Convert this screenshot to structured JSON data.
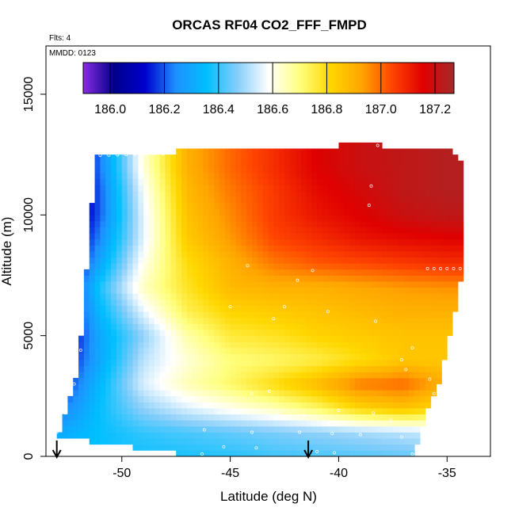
{
  "chart_data": {
    "type": "heatmap",
    "title": "ORCAS RF04 CO2_FFF_FMPD",
    "flights_label": "Flts: 4",
    "mmdd_label": "MMDD: 0123",
    "xlabel": "Latitude (deg N)",
    "ylabel": "Altitude (m)",
    "xlim": [
      -53.5,
      -33
    ],
    "ylim": [
      0,
      17000
    ],
    "x_ticks": [
      -50,
      -45,
      -40,
      -35
    ],
    "y_ticks": [
      0,
      5000,
      10000,
      15000
    ],
    "colorbar": {
      "range": [
        185.9,
        187.27
      ],
      "ticks": [
        186.0,
        186.2,
        186.4,
        186.6,
        186.8,
        187.0,
        187.2
      ],
      "tick_labels": [
        "186.0",
        "186.2",
        "186.4",
        "186.6",
        "186.8",
        "187.0",
        "187.2"
      ],
      "colors": [
        "#8a2be2",
        "#00008b",
        "#0000cd",
        "#1e90ff",
        "#00bfff",
        "#87cefa",
        "#ffffff",
        "#ffff80",
        "#ffd700",
        "#ffa500",
        "#ff4500",
        "#e00000",
        "#a52a2a"
      ]
    },
    "domain_outline": {
      "lat": [
        -53.0,
        -52.0,
        -51.2,
        -39.2,
        -34.8,
        -34.2,
        -34.2,
        -34.6,
        -35.4,
        -36.2,
        -36.5,
        -46.5,
        -48.5,
        -51.0,
        -53.0
      ],
      "alt": [
        700,
        3500,
        12500,
        12900,
        12800,
        12000,
        8000,
        6000,
        3000,
        1200,
        0,
        0,
        250,
        600,
        700
      ]
    },
    "field_anchors": {
      "columns_lat": [
        -53,
        -51,
        -49,
        -47,
        -45,
        -43,
        -41,
        -39,
        -37,
        -35
      ],
      "levels_alt": [
        0,
        1000,
        2000,
        3000,
        4000,
        5000,
        6000,
        7000,
        8000,
        9000,
        10000,
        11000,
        12000,
        13000
      ],
      "values": [
        [
          186.35,
          186.36,
          186.37,
          186.38,
          186.39,
          186.41,
          186.42,
          186.43,
          186.44,
          186.45
        ],
        [
          186.3,
          186.36,
          186.4,
          186.42,
          186.44,
          186.46,
          186.48,
          186.5,
          186.52,
          186.55
        ],
        [
          186.2,
          186.36,
          186.48,
          186.55,
          186.6,
          186.65,
          186.72,
          186.82,
          186.86,
          186.8
        ],
        [
          186.12,
          186.34,
          186.55,
          186.65,
          186.72,
          186.8,
          186.88,
          186.98,
          187.0,
          186.9
        ],
        [
          186.08,
          186.3,
          186.52,
          186.62,
          186.7,
          186.72,
          186.75,
          186.8,
          186.85,
          186.85
        ],
        [
          186.04,
          186.3,
          186.48,
          186.66,
          186.76,
          186.78,
          186.82,
          186.84,
          186.86,
          186.86
        ],
        [
          186.02,
          186.34,
          186.56,
          186.74,
          186.82,
          186.84,
          186.86,
          186.88,
          186.9,
          186.9
        ],
        [
          186.0,
          186.38,
          186.64,
          186.78,
          186.88,
          186.9,
          186.9,
          186.92,
          186.94,
          186.95
        ],
        [
          185.98,
          186.3,
          186.6,
          186.8,
          186.9,
          186.98,
          187.02,
          187.04,
          187.06,
          187.08
        ],
        [
          185.98,
          186.24,
          186.56,
          186.84,
          186.94,
          187.04,
          187.08,
          187.12,
          187.14,
          187.15
        ],
        [
          185.96,
          186.2,
          186.56,
          186.86,
          186.96,
          187.06,
          187.12,
          187.16,
          187.2,
          187.22
        ],
        [
          185.94,
          186.2,
          186.58,
          186.88,
          186.98,
          187.06,
          187.14,
          187.18,
          187.22,
          187.24
        ],
        [
          185.92,
          186.22,
          186.62,
          186.9,
          187.0,
          187.08,
          187.16,
          187.2,
          187.22,
          187.24
        ],
        [
          185.9,
          186.22,
          186.62,
          186.9,
          187.0,
          187.08,
          187.16,
          187.2,
          187.22,
          187.24
        ]
      ]
    },
    "sample_points": [
      [
        -51.8,
        12450
      ],
      [
        -51.4,
        12460
      ],
      [
        -51.0,
        12470
      ],
      [
        -50.6,
        12480
      ],
      [
        -50.2,
        12490
      ],
      [
        -49.8,
        12500
      ],
      [
        -49.4,
        12510
      ],
      [
        -48.9,
        12520
      ],
      [
        -48.5,
        12530
      ],
      [
        -48.1,
        12540
      ],
      [
        -38.2,
        12880
      ],
      [
        -37.8,
        12880
      ],
      [
        -37.4,
        12880
      ],
      [
        -37.0,
        12880
      ],
      [
        -36.6,
        12880
      ],
      [
        -36.2,
        12880
      ],
      [
        -35.8,
        12880
      ],
      [
        -35.4,
        12880
      ],
      [
        -35.0,
        12880
      ],
      [
        -34.6,
        12870
      ],
      [
        -35.9,
        7780
      ],
      [
        -35.6,
        7780
      ],
      [
        -35.3,
        7780
      ],
      [
        -35.0,
        7780
      ],
      [
        -34.7,
        7780
      ],
      [
        -34.4,
        7780
      ],
      [
        -38.5,
        11200
      ],
      [
        -38.6,
        10400
      ],
      [
        -44.2,
        7900
      ],
      [
        -41.2,
        7700
      ],
      [
        -41.9,
        7300
      ],
      [
        -45.0,
        6200
      ],
      [
        -42.5,
        6200
      ],
      [
        -40.5,
        6000
      ],
      [
        -43.0,
        5700
      ],
      [
        -38.3,
        5600
      ],
      [
        -36.6,
        4500
      ],
      [
        -37.1,
        4000
      ],
      [
        -36.9,
        3600
      ],
      [
        -35.8,
        3200
      ],
      [
        -35.6,
        2600
      ],
      [
        -43.2,
        2700
      ],
      [
        -44.0,
        2600
      ],
      [
        -46.0,
        2200
      ],
      [
        -40.0,
        1900
      ],
      [
        -45.5,
        1800
      ],
      [
        -42.8,
        1800
      ],
      [
        -41.6,
        1700
      ],
      [
        -37.6,
        1500
      ],
      [
        -38.4,
        1800
      ],
      [
        -46.2,
        1100
      ],
      [
        -44.0,
        1000
      ],
      [
        -41.8,
        1000
      ],
      [
        -40.3,
        950
      ],
      [
        -39.0,
        900
      ],
      [
        -37.1,
        800
      ],
      [
        -45.3,
        400
      ],
      [
        -43.8,
        350
      ],
      [
        -41.0,
        200
      ],
      [
        -40.2,
        150
      ],
      [
        -46.3,
        100
      ],
      [
        -36.6,
        100
      ],
      [
        -53.0,
        1000
      ],
      [
        -52.6,
        1800
      ],
      [
        -52.2,
        3000
      ],
      [
        -51.9,
        4400
      ]
    ],
    "profile_markers_lat": [
      -53.0,
      -41.4
    ]
  }
}
